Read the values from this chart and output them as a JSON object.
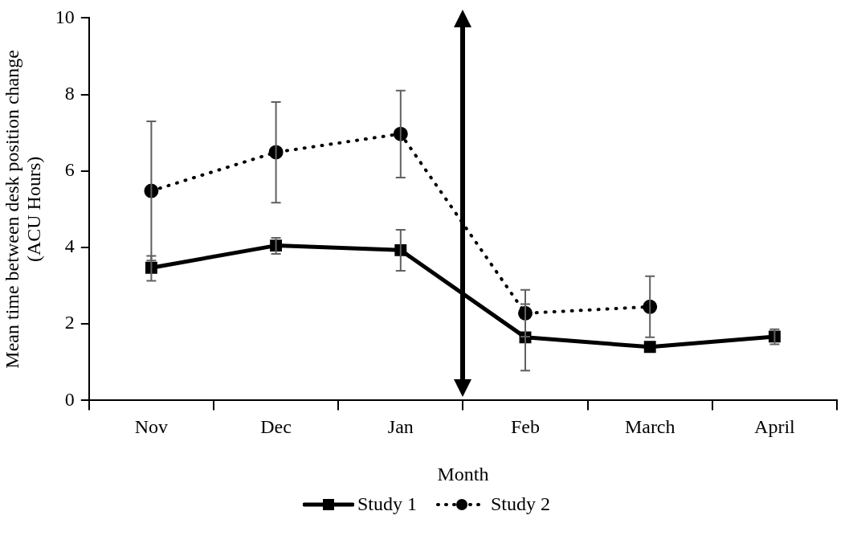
{
  "chart_data": {
    "type": "line",
    "xlabel": "Month",
    "ylabel": "Mean time between desk position change\n(ACU Hours)",
    "categories": [
      "Nov",
      "Dec",
      "Jan",
      "Feb",
      "March",
      "April"
    ],
    "ylim": [
      0,
      10
    ],
    "yticks": [
      0,
      2,
      4,
      6,
      8,
      10
    ],
    "grid": false,
    "legend": "bottom",
    "series": [
      {
        "name": "Study 1",
        "color": "#000000",
        "marker": "square",
        "line_style": "solid",
        "values": [
          3.47,
          4.05,
          3.93,
          1.65,
          1.4,
          1.67
        ],
        "errors": [
          [
            3.13,
            3.78
          ],
          [
            3.83,
            4.25
          ],
          [
            3.39,
            4.46
          ],
          [
            0.78,
            2.52
          ],
          null,
          [
            1.47,
            1.86
          ]
        ]
      },
      {
        "name": "Study 2",
        "color": "#000000",
        "marker": "circle",
        "line_style": "dotted",
        "values": [
          5.48,
          6.49,
          6.97,
          2.28,
          2.45,
          null
        ],
        "errors": [
          [
            3.66,
            7.3
          ],
          [
            5.17,
            7.8
          ],
          [
            5.83,
            8.1
          ],
          [
            1.67,
            2.89
          ],
          [
            1.65,
            3.25
          ],
          null
        ]
      }
    ]
  }
}
